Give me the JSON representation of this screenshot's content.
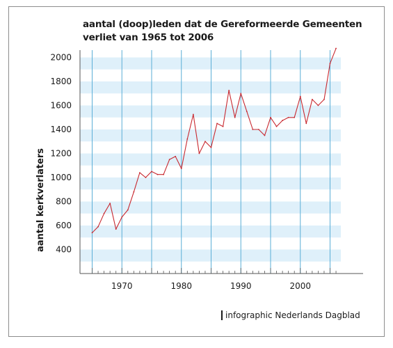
{
  "title_lines": [
    "aantal (doop)leden dat de Gereformeerde Gemeenten",
    "verliet van 1965 tot 2006"
  ],
  "credit": "infographic Nederlands Dagblad",
  "colors": {
    "stripe": "#dff0fa",
    "decade_line": "#5aaed6",
    "series": "#c8282f",
    "axis": "#555555"
  },
  "chart_data": {
    "type": "line",
    "title": "aantal (doop)leden dat de Gereformeerde Gemeenten verliet van 1965 tot 2006",
    "ylabel": "aantal kerkverlaters",
    "xlabel": "",
    "xlim": [
      1963,
      2009
    ],
    "ylim": [
      300,
      2060
    ],
    "xticks": [
      1970,
      1980,
      1990,
      2000
    ],
    "yticks": [
      400,
      600,
      800,
      1000,
      1200,
      1400,
      1600,
      1800,
      2000
    ],
    "grid": "horizontal stripes, vertical lines every 5 years",
    "series": [
      {
        "name": "",
        "x": [
          1965,
          1966,
          1967,
          1968,
          1969,
          1970,
          1971,
          1972,
          1973,
          1974,
          1975,
          1976,
          1977,
          1978,
          1979,
          1980,
          1981,
          1982,
          1983,
          1984,
          1985,
          1986,
          1987,
          1988,
          1989,
          1990,
          1991,
          1992,
          1993,
          1994,
          1995,
          1996,
          1997,
          1998,
          1999,
          2000,
          2001,
          2002,
          2003,
          2004,
          2005,
          2006
        ],
        "y": [
          540,
          590,
          700,
          785,
          570,
          670,
          730,
          880,
          1040,
          1000,
          1050,
          1025,
          1025,
          1150,
          1175,
          1075,
          1320,
          1525,
          1200,
          1300,
          1250,
          1450,
          1425,
          1725,
          1500,
          1700,
          1550,
          1400,
          1400,
          1350,
          1500,
          1425,
          1475,
          1500,
          1500,
          1675,
          1450,
          1650,
          1600,
          1650,
          1950,
          2075
        ]
      }
    ]
  }
}
